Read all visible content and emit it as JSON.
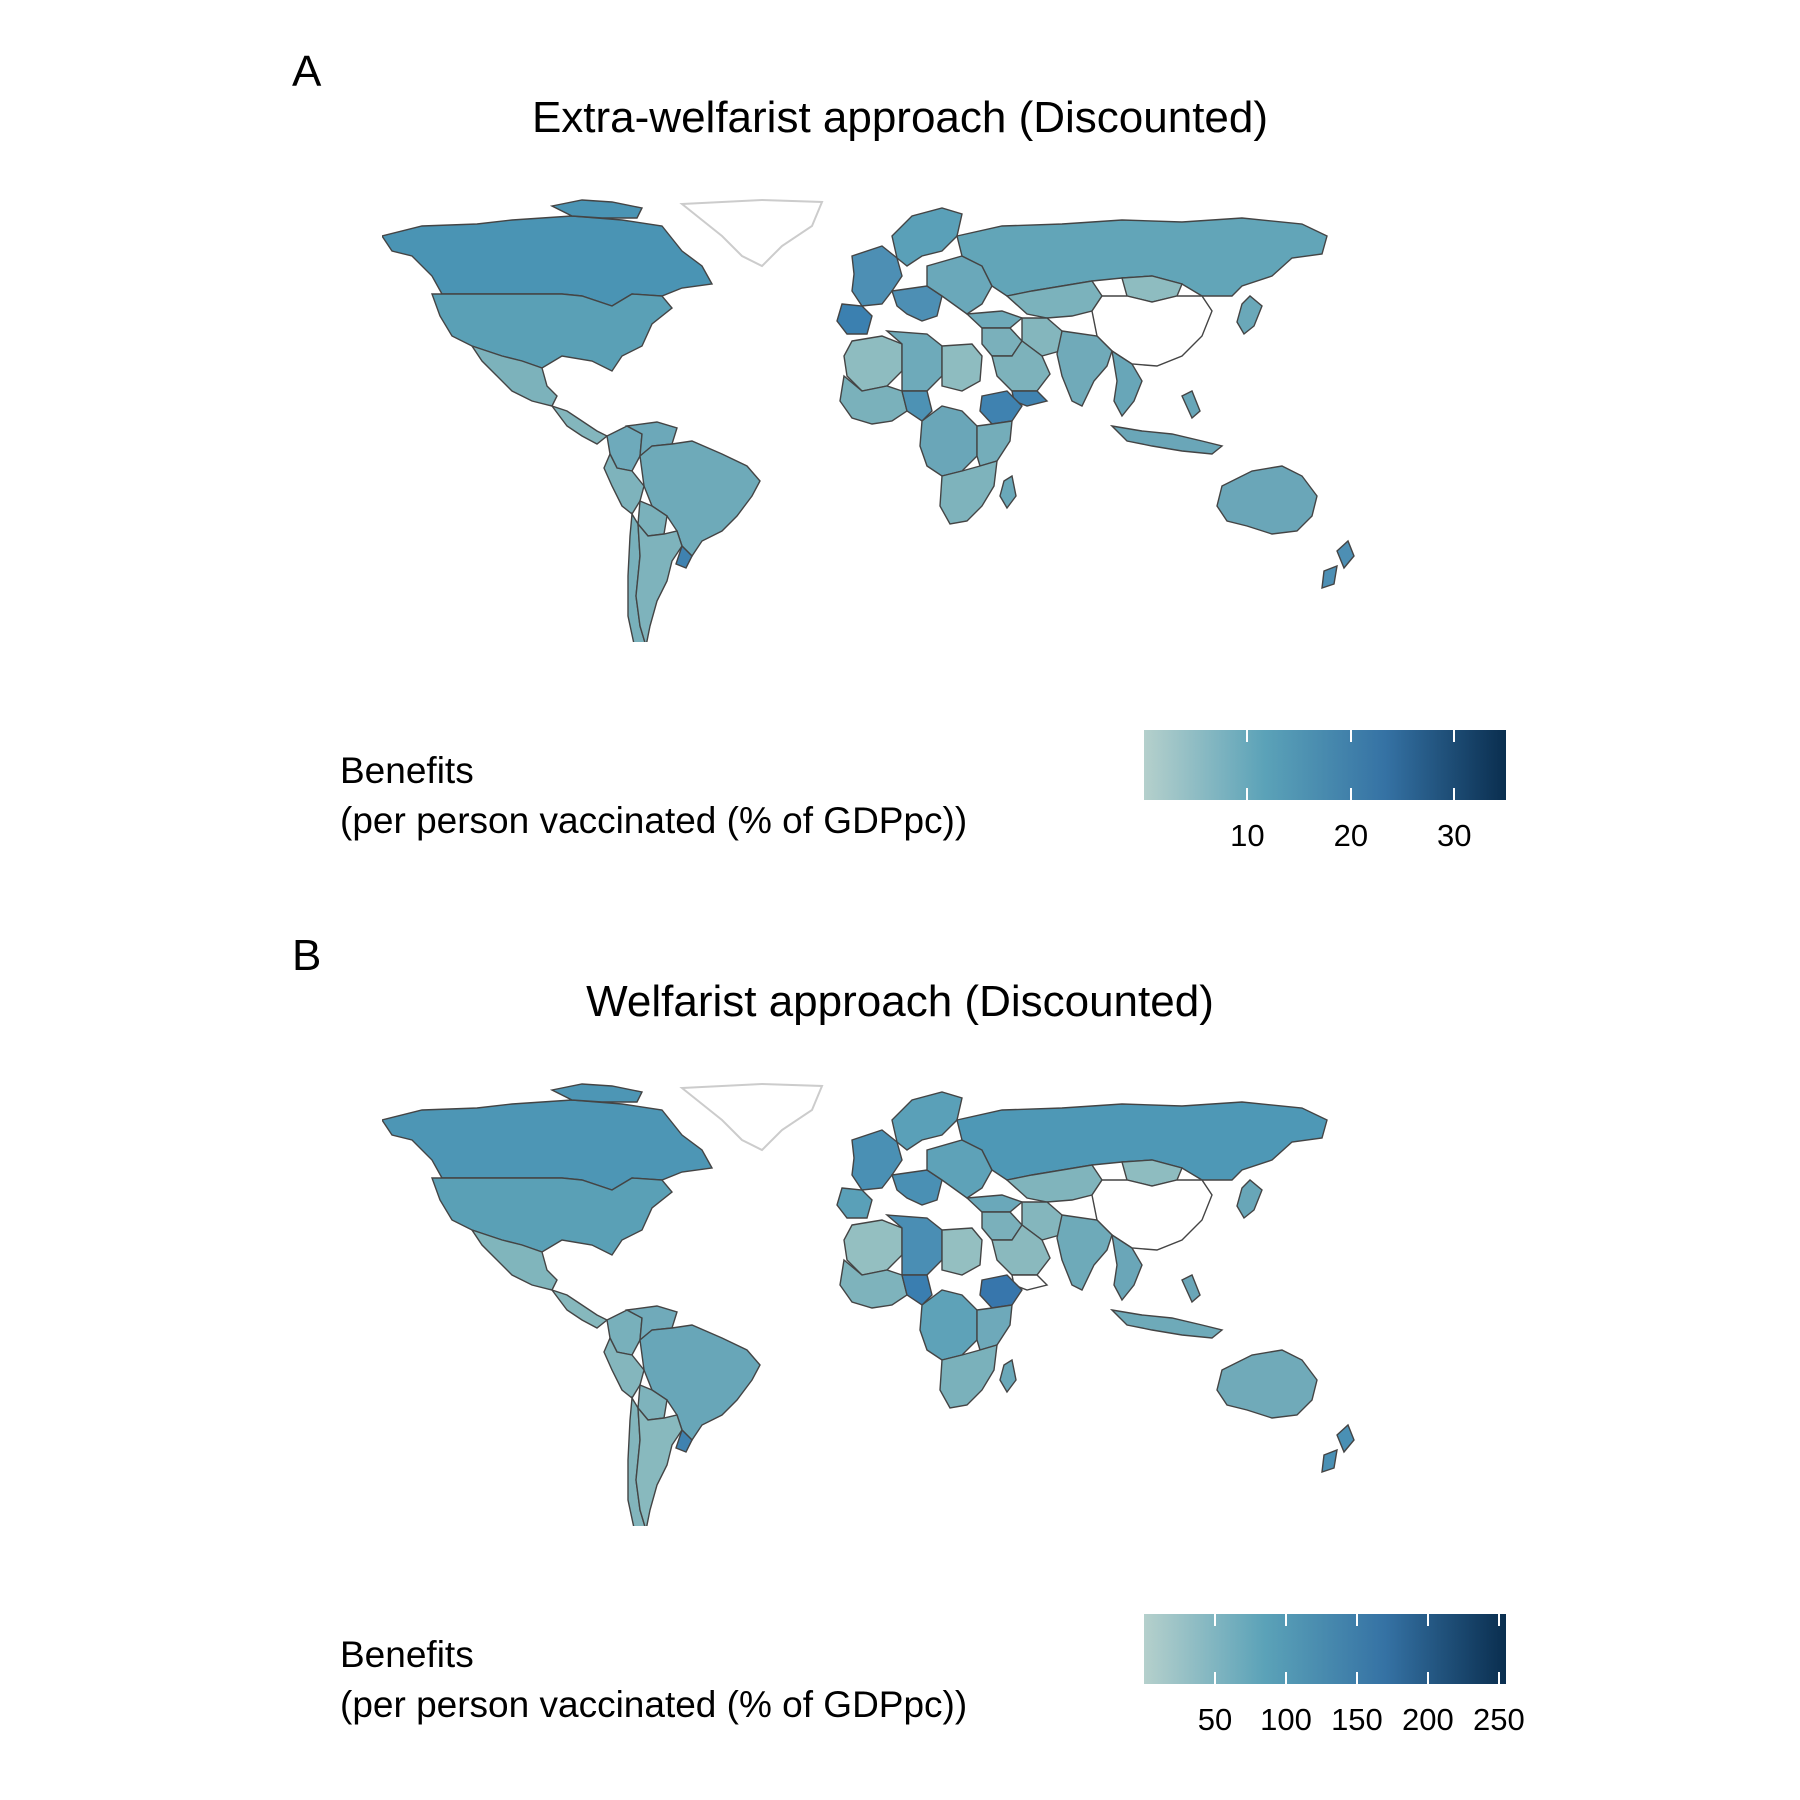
{
  "panels": [
    {
      "letter": "A",
      "title": "Extra-welfarist approach (Discounted)",
      "legend": {
        "title_line1": "Benefits",
        "title_line2": "(per person vaccinated (% of GDPpc))",
        "ticks": [
          "10",
          "20",
          "30"
        ],
        "tick_values": [
          10,
          20,
          30
        ],
        "range": [
          0,
          35
        ],
        "colors": [
          "#b5d0cc",
          "#5ba2b8",
          "#3572a4",
          "#0a2e4f"
        ]
      },
      "fills": {
        "canada": "#4a94b4",
        "usa": "#5aa0b6",
        "mexico": "#7cb2bb",
        "central_america": "#83b6bd",
        "colombia": "#6eaabb",
        "venezuela": "#6ca8b9",
        "brazil": "#6eaab9",
        "peru": "#7eb3bc",
        "bolivia": "#7ab1bb",
        "argentina": "#7eb3bc",
        "chile": "#78b0bb",
        "uruguay": "#3f82b0",
        "greenland_fill": "#ffffff",
        "europe_west": "#4d8fb4",
        "spain": "#3b80b0",
        "scandinavia": "#5aa0b8",
        "eastern_europe": "#6aa8ba",
        "russia": "#62a5b8",
        "kazakhstan": "#7bb2bc",
        "mongolia": "#8ebcc0",
        "china": "#ffffff",
        "turkey": "#6eaaba",
        "middle_east": "#7ab0bb",
        "iran": "#84b6bd",
        "saudi": "#7db2bb",
        "yemen": "#3f82b0",
        "india": "#70aab9",
        "se_asia": "#68a6b8",
        "indonesia": "#6aa6b8",
        "japan": "#6aa8b9",
        "north_africa": "#8ebcc0",
        "algeria_libya": "#6eaaba",
        "west_africa": "#7ab1bb",
        "nigeria": "#4d92b4",
        "ethiopia": "#3f82b0",
        "central_africa": "#6aa6b8",
        "east_africa": "#74adba",
        "southern_africa": "#7eb3bc",
        "madagascar": "#6aa8b9",
        "australia": "#6aa6b8",
        "new_zealand": "#4d8fb4"
      }
    },
    {
      "letter": "B",
      "title": "Welfarist approach (Discounted)",
      "legend": {
        "title_line1": "Benefits",
        "title_line2": "(per person vaccinated (% of GDPpc))",
        "ticks": [
          "50",
          "100",
          "150",
          "200",
          "250"
        ],
        "tick_values": [
          50,
          100,
          150,
          200,
          250
        ],
        "range": [
          0,
          255
        ],
        "colors": [
          "#b5d0cc",
          "#5ba2b8",
          "#3572a4",
          "#0a2e4f"
        ]
      },
      "fills": {
        "canada": "#4d96b5",
        "usa": "#5aa0b6",
        "mexico": "#80b5bc",
        "central_america": "#86b8bd",
        "colombia": "#78b0bb",
        "venezuela": "#70aaba",
        "brazil": "#68a6b8",
        "peru": "#84b6bd",
        "bolivia": "#7eb3bc",
        "argentina": "#88b9be",
        "chile": "#82b5bc",
        "uruguay": "#3f82b0",
        "greenland_fill": "#ffffff",
        "europe_west": "#4a90b4",
        "spain": "#5aa0b8",
        "scandinavia": "#5aa0b8",
        "eastern_europe": "#5ea2b8",
        "russia": "#4e98b6",
        "kazakhstan": "#80b4bc",
        "mongolia": "#8ebcc0",
        "china": "#ffffff",
        "turkey": "#6aa8ba",
        "middle_east": "#7ab0bb",
        "iran": "#84b6bd",
        "saudi": "#8ab9be",
        "yemen": "#ffffff",
        "india": "#6eaab9",
        "se_asia": "#6aa6b8",
        "indonesia": "#6eaab9",
        "japan": "#68a6b8",
        "north_africa": "#94bfc1",
        "algeria_libya": "#4a8eb4",
        "west_africa": "#7eb3bc",
        "nigeria": "#3a7eb0",
        "ethiopia": "#3776ac",
        "central_africa": "#5ea2b8",
        "east_africa": "#6ea9ba",
        "southern_africa": "#7ab1bb",
        "madagascar": "#6aa8b9",
        "australia": "#70aab9",
        "new_zealand": "#4a90b4"
      }
    }
  ]
}
